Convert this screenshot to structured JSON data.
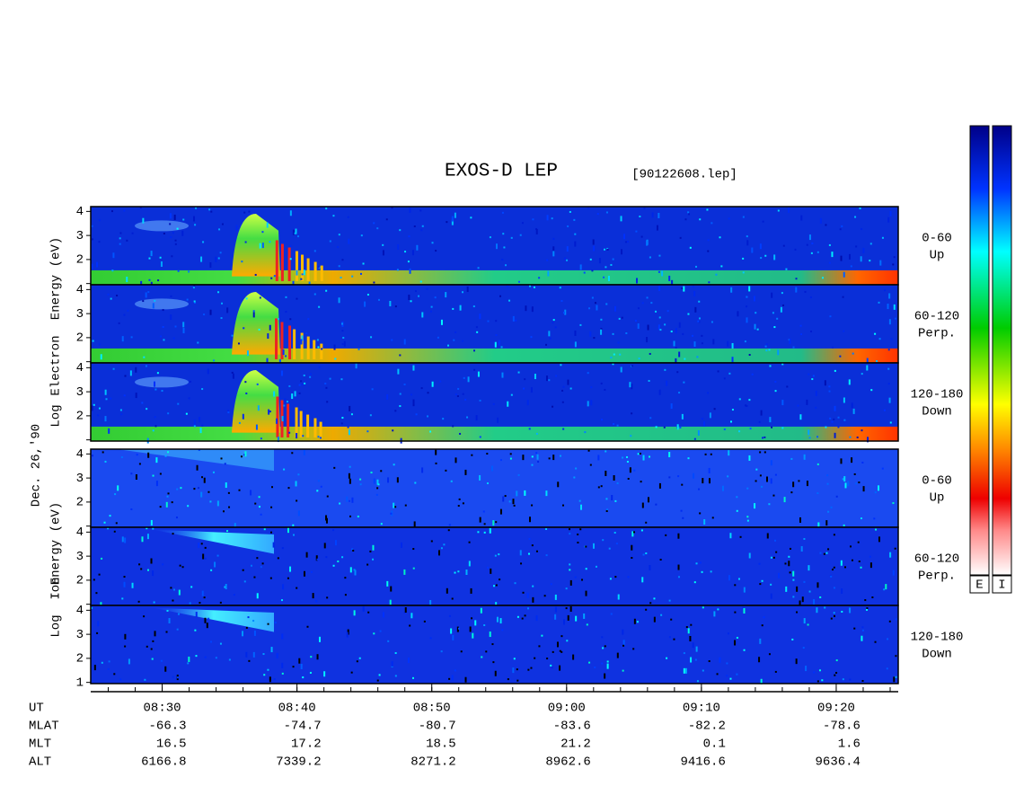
{
  "title": "EXOS-D LEP",
  "file": "[90122608.lep]",
  "date": "Dec. 26,'90",
  "ylim": [
    0.95,
    4.2
  ],
  "yticks": [
    1,
    2,
    3,
    4
  ],
  "groups": [
    {
      "ylabel": [
        "Energy (eV)",
        "Electron",
        "Log"
      ],
      "panels": [
        {
          "label": [
            "0-60",
            "Up"
          ]
        },
        {
          "label": [
            "60-120",
            "Perp."
          ]
        },
        {
          "label": [
            "120-180",
            "Down"
          ]
        }
      ]
    },
    {
      "ylabel": [
        "Energy (eV)",
        "Ion",
        "Log"
      ],
      "panels": [
        {
          "label": [
            "0-60",
            "Up"
          ]
        },
        {
          "label": [
            "60-120",
            "Perp."
          ]
        },
        {
          "label": [
            "120-180",
            "Down"
          ]
        }
      ]
    }
  ],
  "time_axis": {
    "xlim": [
      24.7,
      84.6
    ],
    "xticks": [
      {
        "value": 30,
        "label": "08:30"
      },
      {
        "value": 40,
        "label": "08:40"
      },
      {
        "value": 50,
        "label": "08:50"
      },
      {
        "value": 60,
        "label": "09:00"
      },
      {
        "value": 70,
        "label": "09:10"
      },
      {
        "value": 80,
        "label": "09:20"
      }
    ]
  },
  "orbit": {
    "ut_label": "UT",
    "rows": [
      {
        "label": "MLAT",
        "values": [
          -66.3,
          -74.7,
          -80.7,
          -83.6,
          -82.2,
          -78.6
        ]
      },
      {
        "label": "MLT",
        "values": [
          16.5,
          17.2,
          18.5,
          21.2,
          0.1,
          1.6
        ]
      },
      {
        "label": "ALT",
        "values": [
          6166.8,
          7339.2,
          8271.2,
          8962.6,
          9416.6,
          9636.4
        ]
      }
    ]
  },
  "colorbars": [
    "E",
    "I"
  ]
}
